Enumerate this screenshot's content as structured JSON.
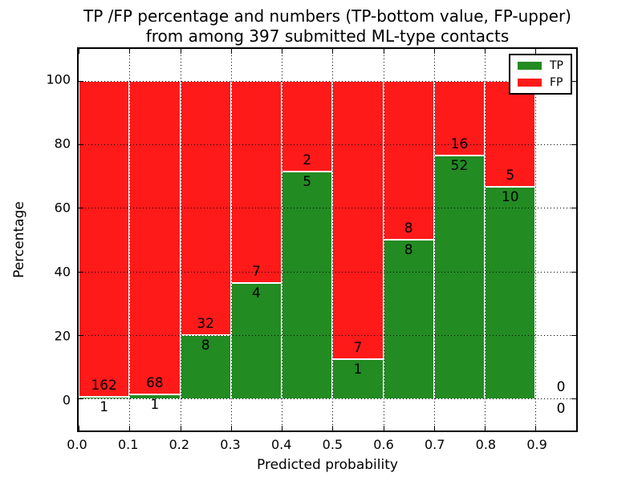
{
  "title": {
    "line1": "TP /FP percentage and numbers (TP-bottom value, FP-upper)",
    "line2": "from among 397 submitted ML-type contacts"
  },
  "axes": {
    "xlabel": "Predicted probability",
    "ylabel": "Percentage",
    "x_tick_labels": [
      "0.0",
      "0.1",
      "0.2",
      "0.3",
      "0.4",
      "0.5",
      "0.6",
      "0.7",
      "0.8",
      "0.9"
    ],
    "y_tick_labels": [
      "0",
      "20",
      "40",
      "60",
      "80",
      "100"
    ]
  },
  "legend": {
    "items": [
      {
        "label": "TP",
        "color": "#228b22",
        "swatch": "tp-legend-swatch"
      },
      {
        "label": "FP",
        "color": "#ff1a1a",
        "swatch": "fp-legend-swatch"
      }
    ]
  },
  "colors": {
    "tp": "#228b22",
    "fp": "#ff1a1a",
    "grid": "#000000",
    "axis": "#000000",
    "background": "#ffffff"
  },
  "chart_data": {
    "type": "bar",
    "stacked": true,
    "normalized": "each bin scaled to 100%",
    "title": "TP /FP percentage and numbers (TP-bottom value, FP-upper) from among 397 submitted ML-type contacts",
    "xlabel": "Predicted probability",
    "ylabel": "Percentage",
    "xlim": [
      0.0,
      0.98
    ],
    "ylim": [
      -10,
      110
    ],
    "x_ticks": [
      0.0,
      0.1,
      0.2,
      0.3,
      0.4,
      0.5,
      0.6,
      0.7,
      0.8,
      0.9
    ],
    "y_ticks": [
      0,
      20,
      40,
      60,
      80,
      100
    ],
    "grid": true,
    "legend_position": "upper right",
    "bin_width": 0.1,
    "bin_starts": [
      0.0,
      0.1,
      0.2,
      0.3,
      0.4,
      0.5,
      0.6,
      0.7,
      0.8,
      0.9
    ],
    "series": [
      {
        "name": "TP",
        "color": "#228b22",
        "counts": [
          1,
          1,
          8,
          4,
          5,
          1,
          8,
          52,
          10,
          0
        ]
      },
      {
        "name": "FP",
        "color": "#ff1a1a",
        "counts": [
          162,
          68,
          32,
          7,
          2,
          7,
          8,
          16,
          5,
          0
        ]
      }
    ],
    "tp_percent_per_bin": [
      0.61,
      1.45,
      20.0,
      36.36,
      71.43,
      12.5,
      50.0,
      76.47,
      66.67,
      0
    ],
    "total_contacts": 397
  }
}
